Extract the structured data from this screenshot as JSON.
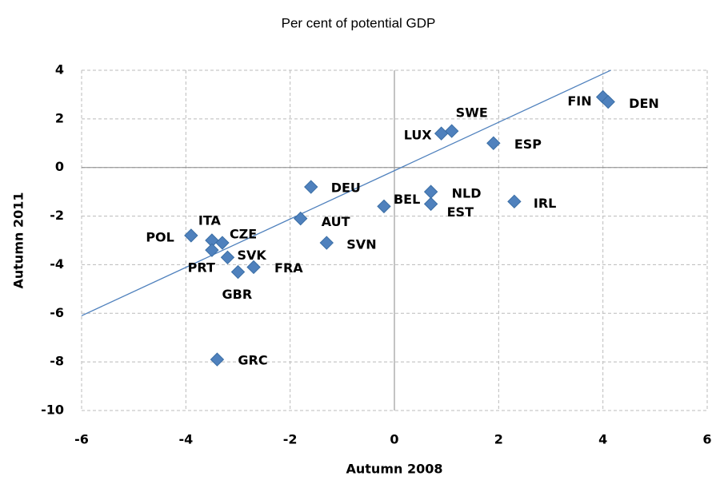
{
  "chart_data": {
    "type": "scatter",
    "title": "Per cent of potential GDP",
    "x_label": "Autumn 2008",
    "y_label": "Autumn 2011",
    "series": [
      {
        "color": "#4f81bd",
        "labels": [
          "FIN",
          "DEN",
          "SWE",
          "LUX",
          "ESP",
          "NLD",
          "EST",
          "IRL",
          "BEL",
          "DEU",
          "AUT",
          "SVN",
          "POL",
          "ITA",
          "CZE",
          "PRT",
          "SVK",
          "FRA",
          "GBR",
          "GRC"
        ],
        "x": [
          4.0,
          4.1,
          1.1,
          0.9,
          1.9,
          0.7,
          0.7,
          2.3,
          -0.2,
          -1.6,
          -1.8,
          -1.3,
          -3.9,
          -3.5,
          -3.3,
          -3.5,
          -3.2,
          -2.7,
          -3.0,
          -3.4
        ],
        "values": [
          2.9,
          2.7,
          1.5,
          1.4,
          1.0,
          -1.0,
          -1.5,
          -1.4,
          -1.6,
          -0.8,
          -2.1,
          -3.1,
          -2.8,
          -3.0,
          -3.1,
          -3.4,
          -3.7,
          -4.1,
          -4.3,
          -7.9
        ]
      }
    ],
    "trendline": {
      "color": "#4f81bd",
      "x": [
        -6,
        4.15
      ],
      "values": [
        -6.1,
        4
      ]
    },
    "xlim": [
      -6,
      6
    ],
    "ylim": [
      -10,
      4
    ],
    "xticks": [
      -6,
      -4,
      -2,
      0,
      2,
      4,
      6
    ],
    "yticks": [
      -10,
      -8,
      -6,
      -4,
      -2,
      0,
      2,
      4
    ],
    "grid": true
  }
}
